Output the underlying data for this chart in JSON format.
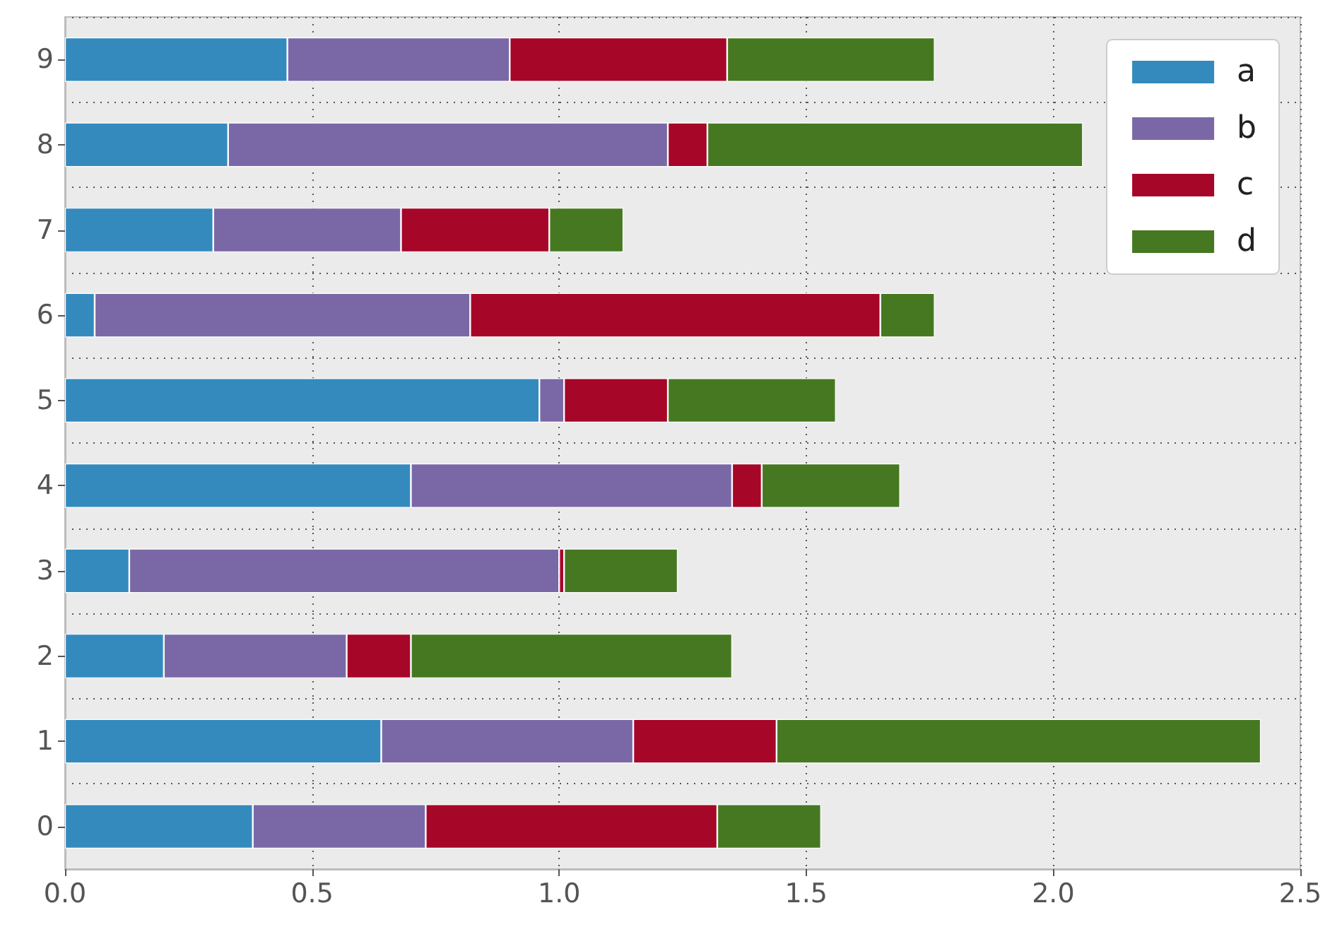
{
  "chart_data": {
    "type": "bar",
    "orientation": "horizontal",
    "stacked": true,
    "categories": [
      "9",
      "8",
      "7",
      "6",
      "5",
      "4",
      "3",
      "2",
      "1",
      "0"
    ],
    "series": [
      {
        "name": "a",
        "color": "#348abd",
        "values": [
          0.45,
          0.33,
          0.3,
          0.06,
          0.96,
          0.7,
          0.13,
          0.2,
          0.64,
          0.38
        ]
      },
      {
        "name": "b",
        "color": "#7a68a6",
        "values": [
          0.45,
          0.89,
          0.38,
          0.76,
          0.05,
          0.65,
          0.87,
          0.37,
          0.51,
          0.35
        ]
      },
      {
        "name": "c",
        "color": "#a60628",
        "values": [
          0.44,
          0.08,
          0.3,
          0.83,
          0.21,
          0.06,
          0.01,
          0.13,
          0.29,
          0.59
        ]
      },
      {
        "name": "d",
        "color": "#467821",
        "values": [
          0.42,
          0.76,
          0.15,
          0.11,
          0.34,
          0.28,
          0.23,
          0.65,
          0.98,
          0.21
        ]
      }
    ],
    "xlim": [
      0,
      2.5
    ],
    "xticks": [
      {
        "value": 0,
        "label": "0.0"
      },
      0.5,
      {
        "value": 1,
        "label": "1.0"
      },
      1.5,
      {
        "value": 2,
        "label": "2.0"
      },
      2.5
    ],
    "grid": true,
    "legend": "top right"
  }
}
